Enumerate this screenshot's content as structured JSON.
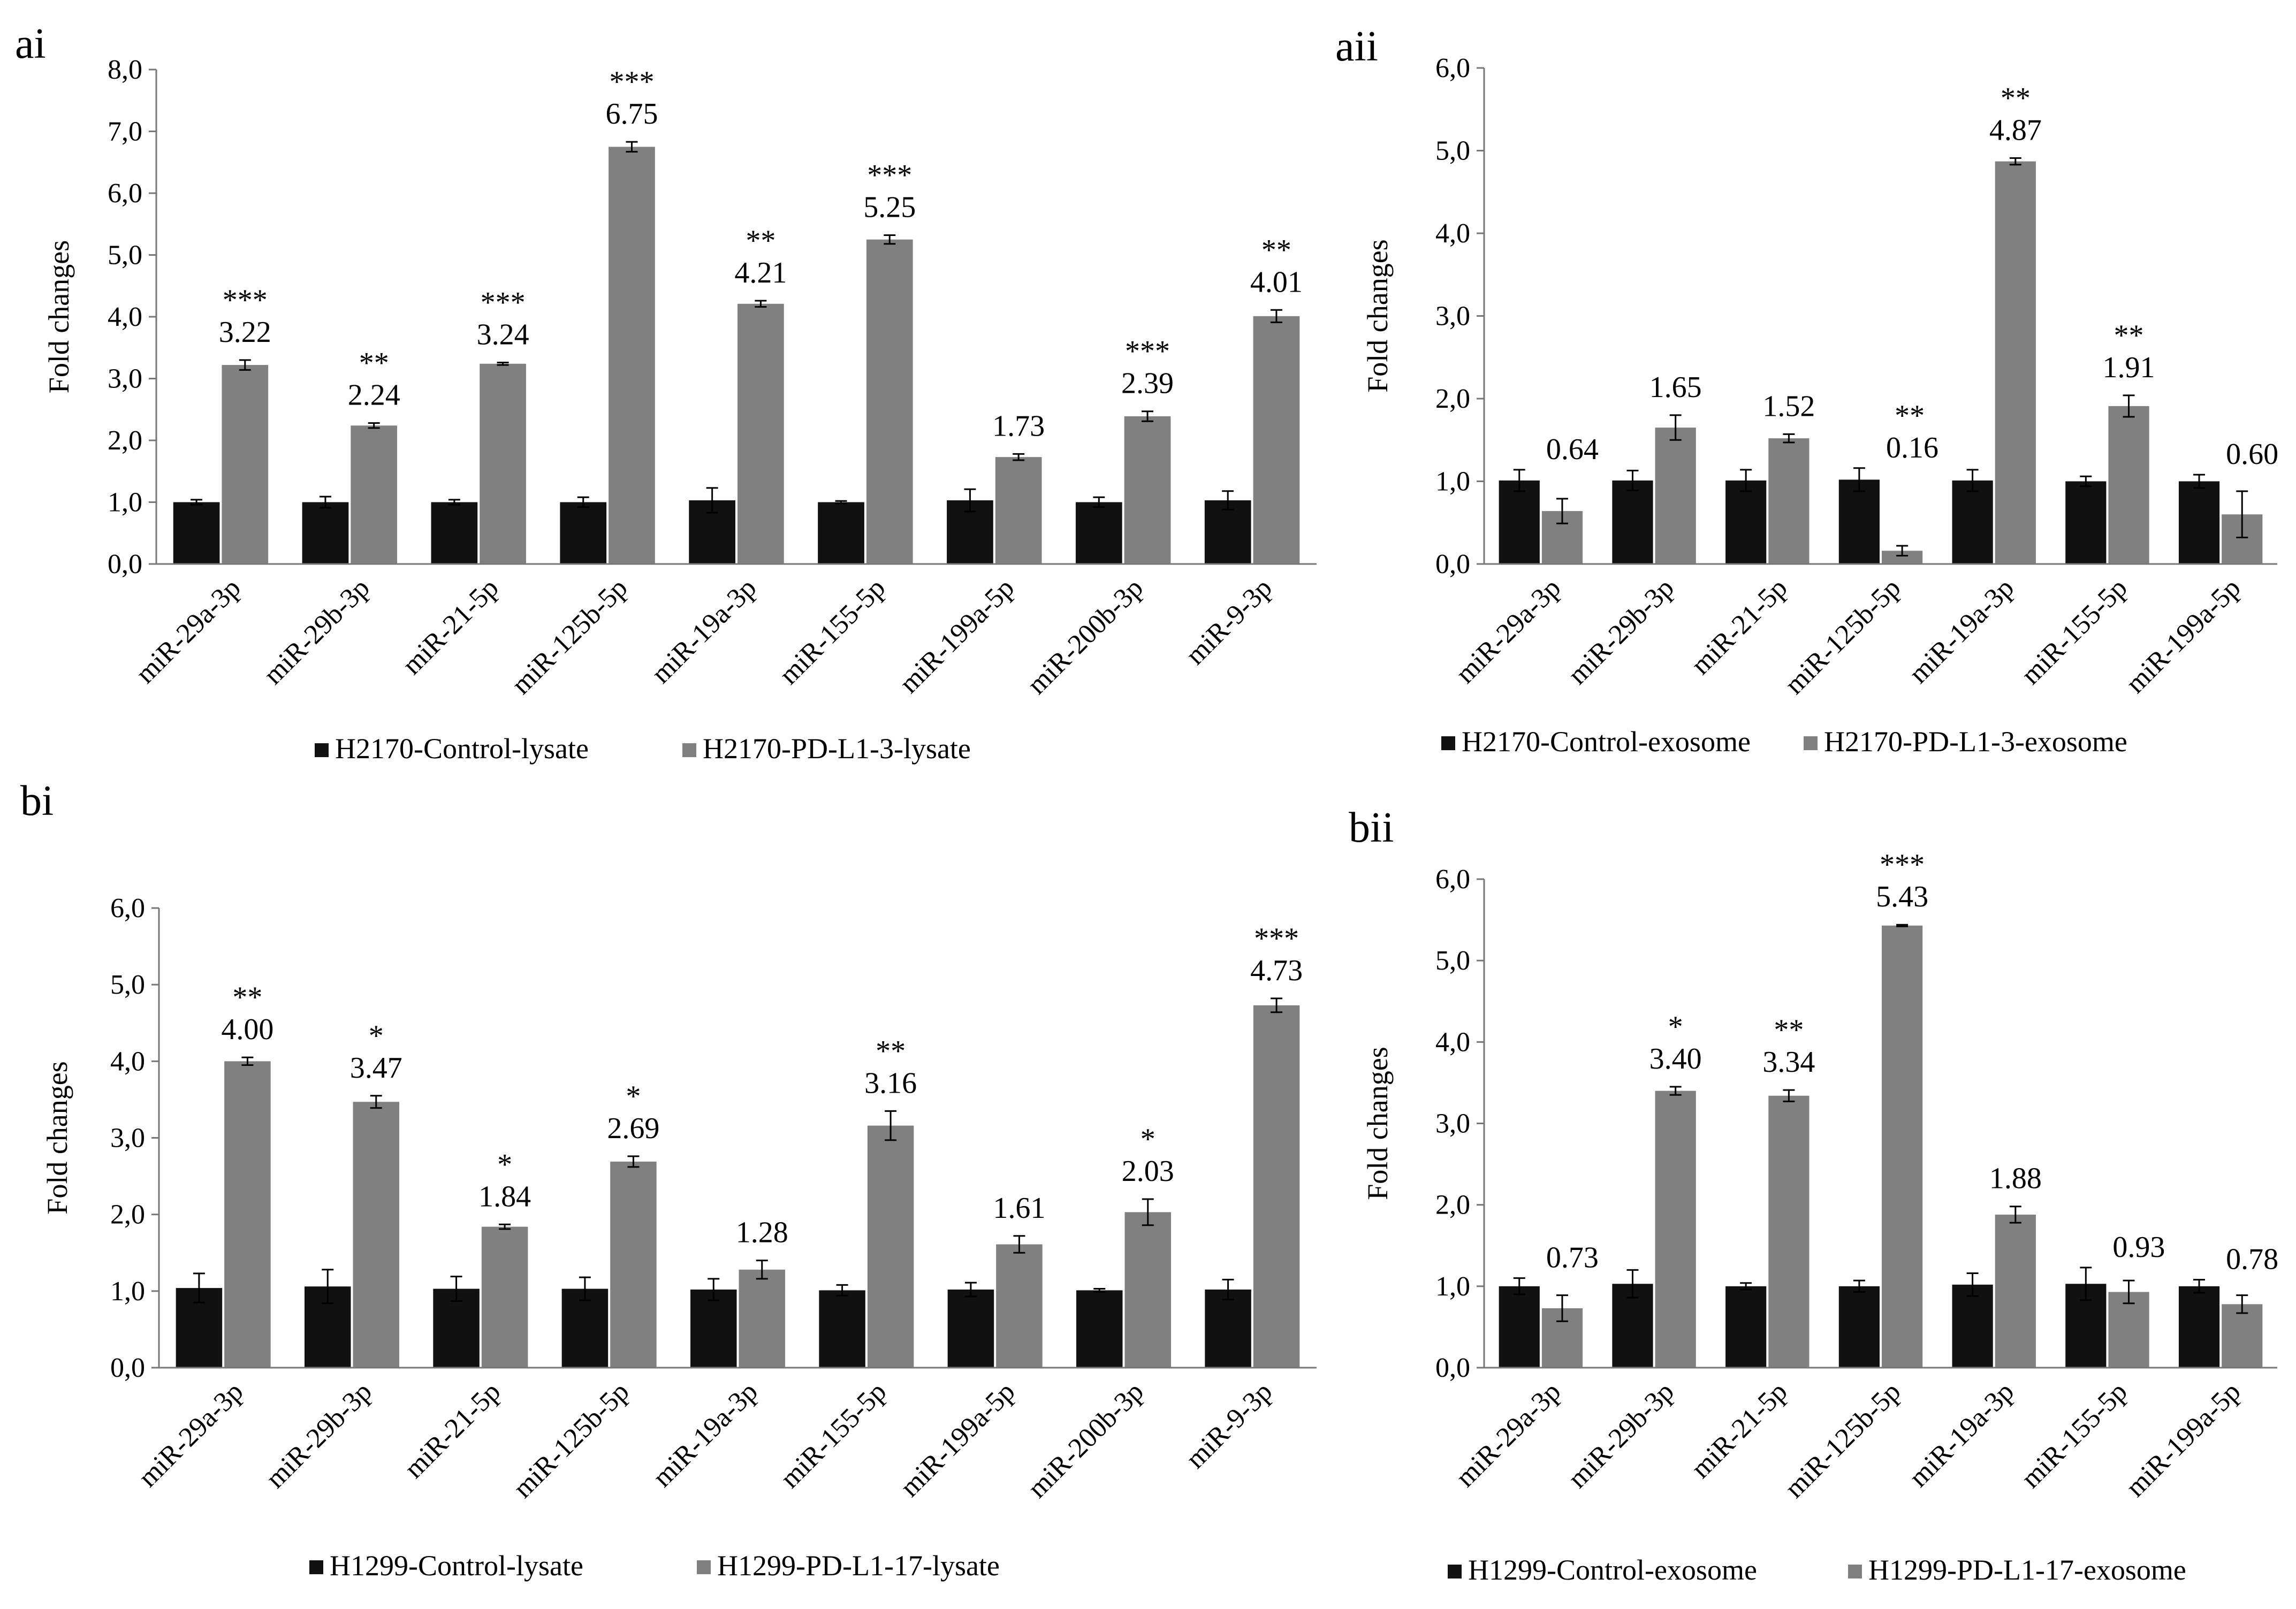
{
  "chart_data": [
    {
      "panel": "ai",
      "type": "bar",
      "ylabel": "Fold changes",
      "ylim": [
        0,
        8
      ],
      "yticks": [
        "0,0",
        "1,0",
        "2,0",
        "3,0",
        "4,0",
        "5,0",
        "6,0",
        "7,0",
        "8,0"
      ],
      "categories": [
        "miR-29a-3p",
        "miR-29b-3p",
        "miR-21-5p",
        "miR-125b-5p",
        "miR-19a-3p",
        "miR-155-5p",
        "miR-199a-5p",
        "miR-200b-3p",
        "miR-9-3p"
      ],
      "series": [
        {
          "name": "H2170-Control-lysate",
          "color": "#111111",
          "values": [
            1.0,
            1.0,
            1.0,
            1.0,
            1.03,
            1.0,
            1.03,
            1.0,
            1.03
          ],
          "errors": [
            0.04,
            0.09,
            0.04,
            0.08,
            0.2,
            0.02,
            0.18,
            0.08,
            0.15
          ]
        },
        {
          "name": "H2170-PD-L1-3-lysate",
          "color": "#808080",
          "values": [
            3.22,
            2.24,
            3.24,
            6.75,
            4.21,
            5.25,
            1.73,
            2.39,
            4.01
          ],
          "errors": [
            0.08,
            0.04,
            0.02,
            0.08,
            0.05,
            0.07,
            0.05,
            0.08,
            0.1
          ]
        }
      ],
      "value_labels": [
        "3.22",
        "2.24",
        "3.24",
        "6.75",
        "4.21",
        "5.25",
        "1.73",
        "2.39",
        "4.01"
      ],
      "significance": [
        "***",
        "**",
        "***",
        "***",
        "**",
        "***",
        "",
        "***",
        "**"
      ]
    },
    {
      "panel": "aii",
      "type": "bar",
      "ylabel": "Fold changes",
      "ylim": [
        0,
        6
      ],
      "yticks": [
        "0,0",
        "1,0",
        "2,0",
        "3,0",
        "4,0",
        "5,0",
        "6,0"
      ],
      "categories": [
        "miR-29a-3p",
        "miR-29b-3p",
        "miR-21-5p",
        "miR-125b-5p",
        "miR-19a-3p",
        "miR-155-5p",
        "miR-199a-5p"
      ],
      "series": [
        {
          "name": "H2170-Control-exosome",
          "color": "#111111",
          "values": [
            1.01,
            1.01,
            1.01,
            1.02,
            1.01,
            1.0,
            1.0
          ],
          "errors": [
            0.13,
            0.12,
            0.13,
            0.14,
            0.13,
            0.06,
            0.08
          ]
        },
        {
          "name": "H2170-PD-L1-3-exosome",
          "color": "#808080",
          "values": [
            0.64,
            1.65,
            1.52,
            0.16,
            4.87,
            1.91,
            0.6
          ],
          "errors": [
            0.15,
            0.15,
            0.05,
            0.06,
            0.04,
            0.13,
            0.28
          ]
        }
      ],
      "value_labels": [
        "0.64",
        "1.65",
        "1.52",
        "0.16",
        "4.87",
        "1.91",
        "0.60"
      ],
      "significance": [
        "",
        "",
        "",
        "**",
        "**",
        "**",
        ""
      ]
    },
    {
      "panel": "bi",
      "type": "bar",
      "ylabel": "Fold changes",
      "ylim": [
        0,
        6
      ],
      "yticks": [
        "0,0",
        "1,0",
        "2,0",
        "3,0",
        "4,0",
        "5,0",
        "6,0"
      ],
      "categories": [
        "miR-29a-3p",
        "miR-29b-3p",
        "miR-21-5p",
        "miR-125b-5p",
        "miR-19a-3p",
        "miR-155-5p",
        "miR-199a-5p",
        "miR-200b-3p",
        "miR-9-3p"
      ],
      "series": [
        {
          "name": "H1299-Control-lysate",
          "color": "#111111",
          "values": [
            1.04,
            1.06,
            1.03,
            1.03,
            1.02,
            1.01,
            1.02,
            1.01,
            1.02
          ],
          "errors": [
            0.19,
            0.22,
            0.16,
            0.15,
            0.14,
            0.07,
            0.09,
            0.02,
            0.13
          ]
        },
        {
          "name": "H1299-PD-L1-17-lysate",
          "color": "#808080",
          "values": [
            4.0,
            3.47,
            1.84,
            2.69,
            1.28,
            3.16,
            1.61,
            2.03,
            4.73
          ],
          "errors": [
            0.05,
            0.08,
            0.03,
            0.07,
            0.12,
            0.19,
            0.11,
            0.17,
            0.09
          ]
        }
      ],
      "value_labels": [
        "4.00",
        "3.47",
        "1.84",
        "2.69",
        "1.28",
        "3.16",
        "1.61",
        "2.03",
        "4.73"
      ],
      "significance": [
        "**",
        "*",
        "*",
        "*",
        "",
        "**",
        "",
        "*",
        "***"
      ]
    },
    {
      "panel": "bii",
      "type": "bar",
      "ylabel": "Fold changes",
      "ylim": [
        0,
        6
      ],
      "yticks": [
        "0,0",
        "1,0",
        "2,0",
        "3,0",
        "4,0",
        "5,0",
        "6,0"
      ],
      "categories": [
        "miR-29a-3p",
        "miR-29b-3p",
        "miR-21-5p",
        "miR-125b-5p",
        "miR-19a-3p",
        "miR-155-5p",
        "miR-199a-5p"
      ],
      "series": [
        {
          "name": "H1299-Control-exosome",
          "color": "#111111",
          "values": [
            1.0,
            1.03,
            1.0,
            1.0,
            1.02,
            1.03,
            1.0
          ],
          "errors": [
            0.1,
            0.17,
            0.04,
            0.07,
            0.14,
            0.2,
            0.08
          ]
        },
        {
          "name": "H1299-PD-L1-17-exosome",
          "color": "#808080",
          "values": [
            0.73,
            3.4,
            3.34,
            5.43,
            1.88,
            0.93,
            0.78
          ],
          "errors": [
            0.16,
            0.05,
            0.07,
            0.01,
            0.1,
            0.14,
            0.11
          ]
        }
      ],
      "value_labels": [
        "0.73",
        "3.40",
        "3.34",
        "5.43",
        "1.88",
        "0.93",
        "0.78"
      ],
      "significance": [
        "",
        "*",
        "**",
        "***",
        "",
        "",
        ""
      ]
    }
  ]
}
